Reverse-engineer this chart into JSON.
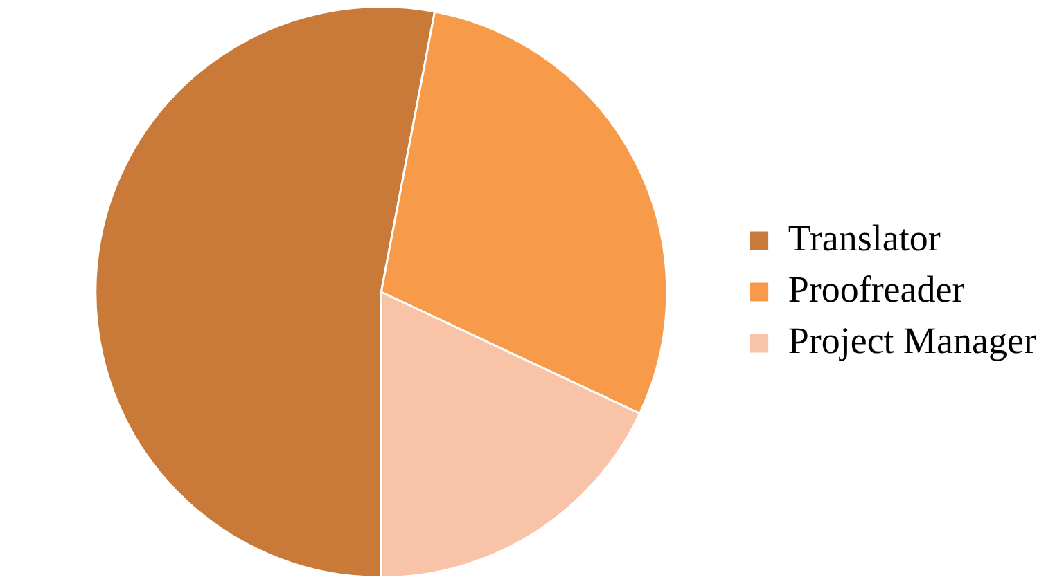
{
  "chart_data": {
    "type": "pie",
    "categories": [
      "Translator",
      "Proofreader",
      "Project Manager"
    ],
    "values": [
      53,
      29,
      18
    ],
    "colors": [
      "#c97a38",
      "#f79a4a",
      "#f9c3a8"
    ],
    "legend": "right"
  }
}
